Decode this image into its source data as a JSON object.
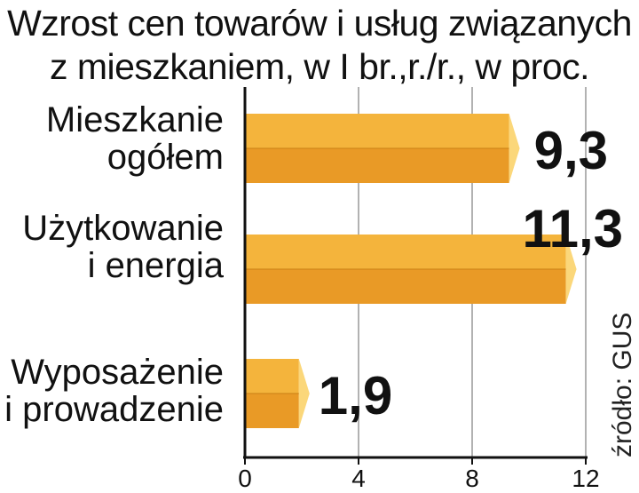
{
  "title_line1": "Wzrost cen towarów i usług związanych",
  "title_line2": "z mieszkaniem, w I br.,r./r., w proc.",
  "source": "źródło: GUS",
  "colors": {
    "bar_top": "#F4B43C",
    "bar_bottom": "#E99A26",
    "bar_tip": "#FBD77A",
    "axis": "#111111",
    "grid": "#999999"
  },
  "chart_data": {
    "type": "bar",
    "orientation": "horizontal",
    "categories": [
      [
        "Mieszkanie",
        "ogółem"
      ],
      [
        "Użytkowanie",
        "i energia"
      ],
      [
        "Wyposażenie",
        "i prowadzenie"
      ]
    ],
    "values": [
      9.3,
      11.3,
      1.9
    ],
    "value_labels": [
      "9,3",
      "11,3",
      "1,9"
    ],
    "xlim": [
      0,
      12
    ],
    "xticks": [
      0,
      4,
      8,
      12
    ],
    "grid": true
  }
}
